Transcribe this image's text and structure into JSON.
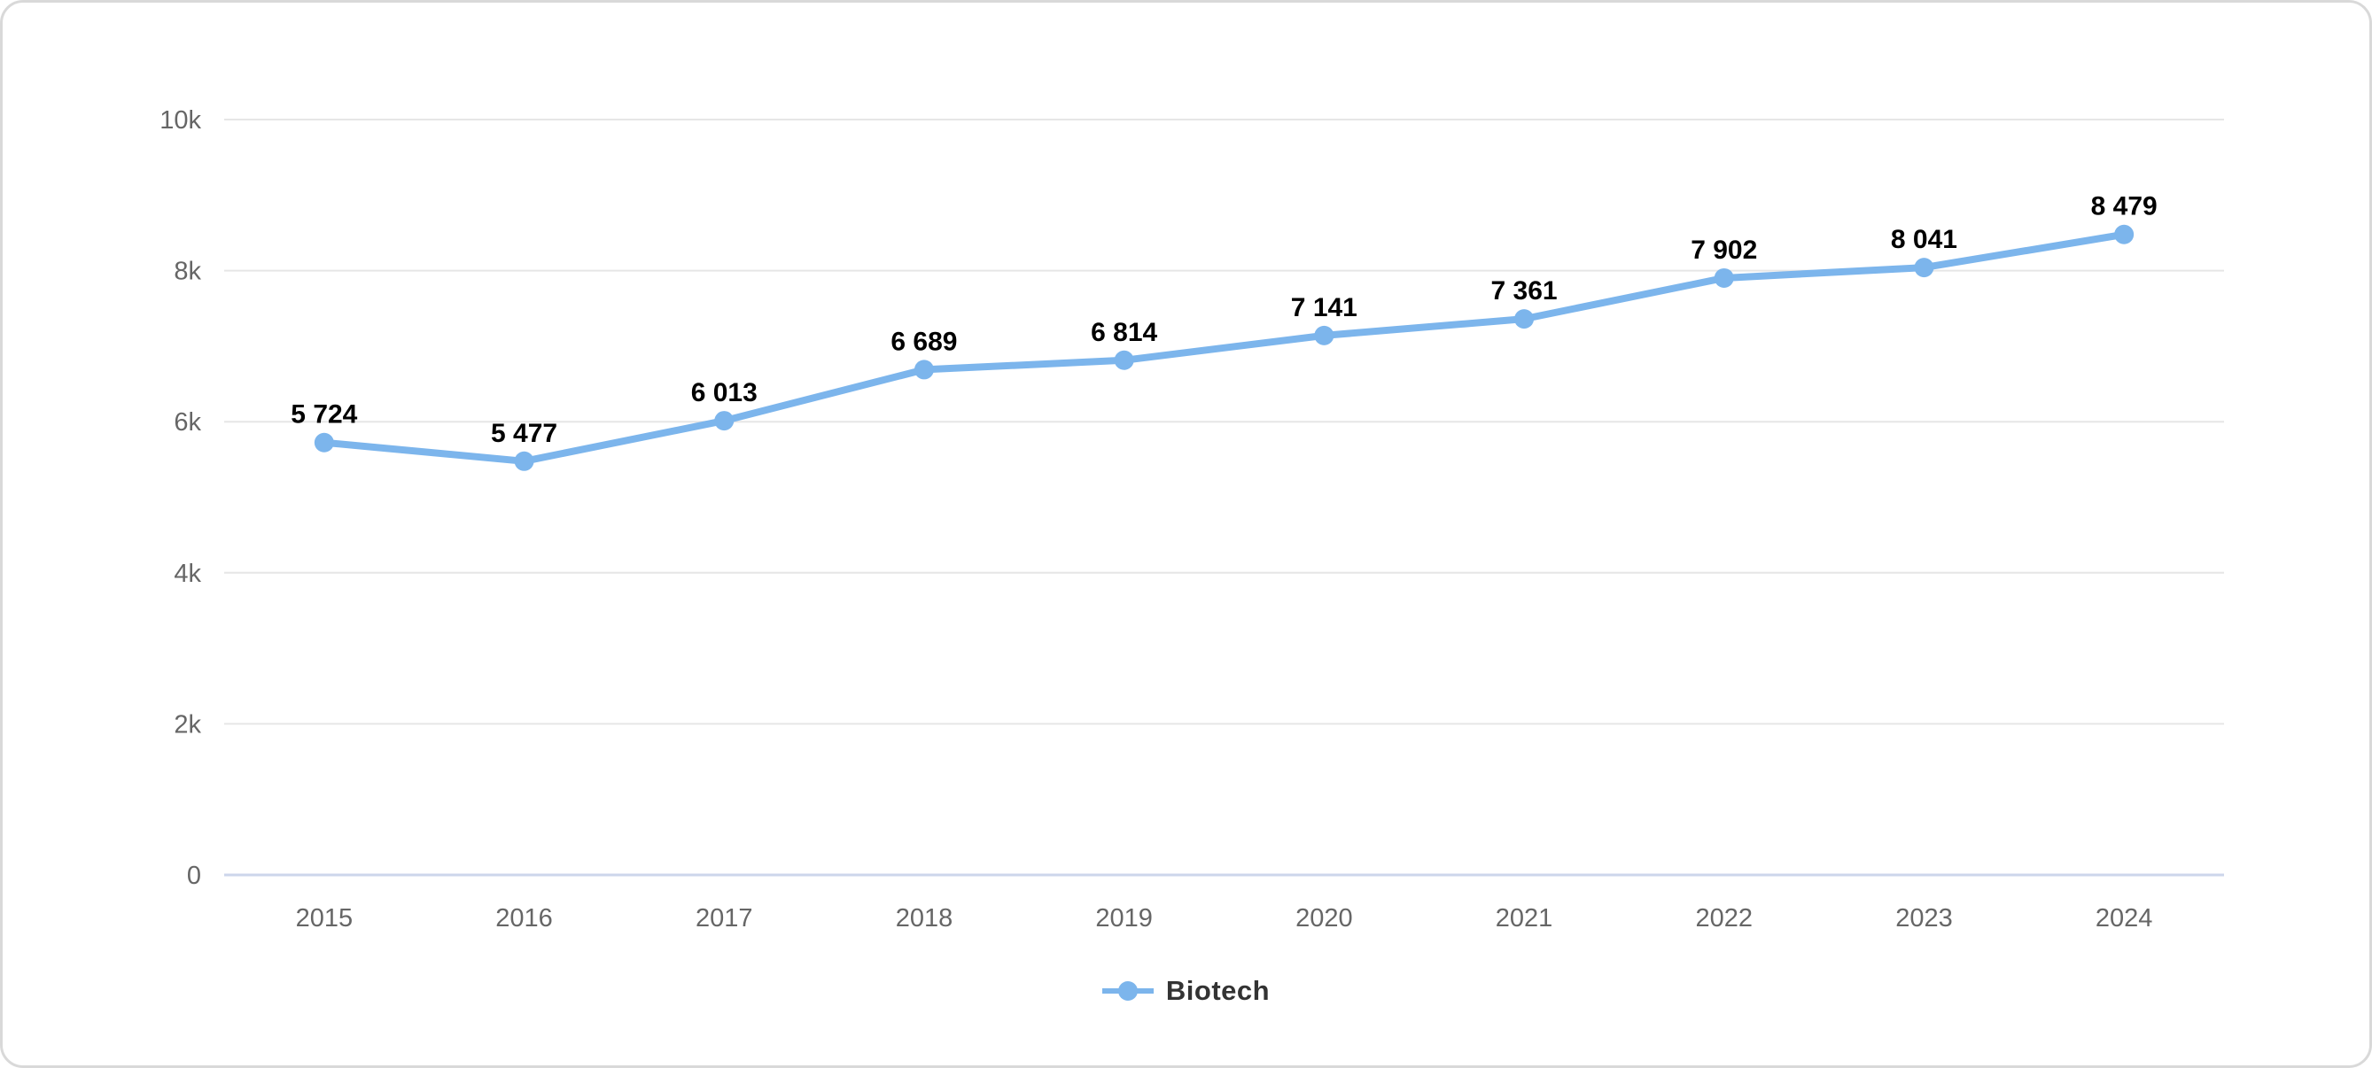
{
  "chart_data": {
    "type": "line",
    "categories": [
      "2015",
      "2016",
      "2017",
      "2018",
      "2019",
      "2020",
      "2021",
      "2022",
      "2023",
      "2024"
    ],
    "series": [
      {
        "name": "Biotech",
        "values": [
          5724,
          5477,
          6013,
          6689,
          6814,
          7141,
          7361,
          7902,
          8041,
          8479
        ],
        "data_labels": [
          "5 724",
          "5 477",
          "6 013",
          "6 689",
          "6 814",
          "7 141",
          "7 361",
          "7 902",
          "8 041",
          "8 479"
        ],
        "color": "#7cb5ec"
      }
    ],
    "title": "",
    "xlabel": "",
    "ylabel": "",
    "ylim": [
      0,
      10000
    ],
    "yticks": [
      0,
      2000,
      4000,
      6000,
      8000,
      10000
    ],
    "ytick_labels": [
      "0",
      "2k",
      "4k",
      "6k",
      "8k",
      "10k"
    ],
    "grid": true,
    "legend_position": "bottom-center"
  },
  "legend": {
    "label": "Biotech"
  },
  "colors": {
    "series": "#7cb5ec",
    "grid_line": "#e6e6e6",
    "axis_line": "#ccd6eb",
    "tick_text": "#666666",
    "data_label": "#000000",
    "legend_text": "#333333",
    "card_border": "#d9d9d9",
    "background": "#ffffff"
  }
}
